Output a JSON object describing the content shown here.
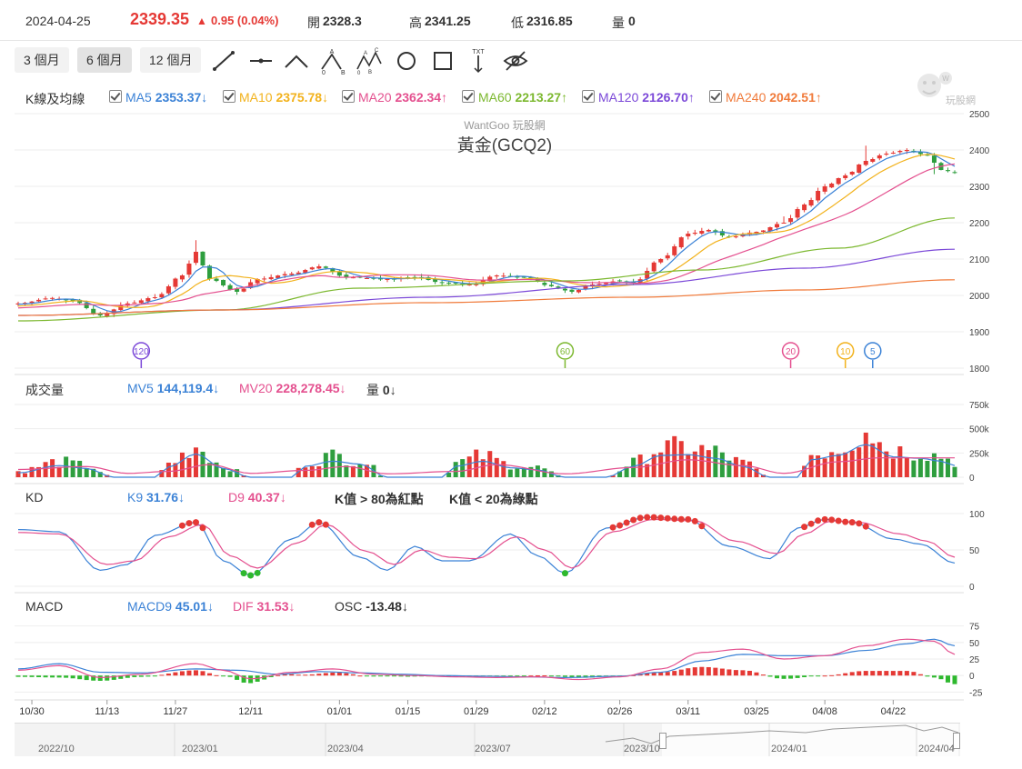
{
  "topbar": {
    "date": "2024-04-25",
    "price": "2339.35",
    "change": "0.95 (0.04%)",
    "open_label": "開",
    "open": "2328.3",
    "high_label": "高",
    "high": "2341.25",
    "low_label": "低",
    "low": "2316.85",
    "vol_label": "量",
    "vol": "0"
  },
  "toolbar": {
    "periods": [
      "3 個月",
      "6 個月",
      "12 個月"
    ],
    "active_period": "6 個月",
    "tools": [
      "line-tool-icon",
      "hline-tool-icon",
      "polyline-tool-icon",
      "abc-pattern-icon",
      "abcd-pattern-icon",
      "circle-tool-icon",
      "rect-tool-icon",
      "text-tool-icon",
      "hide-icon"
    ]
  },
  "price_panel": {
    "header": "K線及均線",
    "legend": [
      {
        "name": "MA5",
        "value": "2353.37",
        "arrow": "↓",
        "color": "#3b82d6"
      },
      {
        "name": "MA10",
        "value": "2375.78",
        "arrow": "↓",
        "color": "#f2b21c"
      },
      {
        "name": "MA20",
        "value": "2362.34",
        "arrow": "↑",
        "color": "#e4508f"
      },
      {
        "name": "MA60",
        "value": "2213.27",
        "arrow": "↑",
        "color": "#7cb82f"
      },
      {
        "name": "MA120",
        "value": "2126.70",
        "arrow": "↑",
        "color": "#7b48d8"
      },
      {
        "name": "MA240",
        "value": "2042.51",
        "arrow": "↑",
        "color": "#f07a3a"
      }
    ],
    "watermark": "WantGoo 玩股網",
    "title": "黃金(GCQ2)",
    "logo_text": "玩股網",
    "markers": [
      {
        "label": "120",
        "color": "#7b48d8",
        "x_index": 18
      },
      {
        "label": "60",
        "color": "#7cb82f",
        "x_index": 80
      },
      {
        "label": "20",
        "color": "#e4508f",
        "x_index": 113
      },
      {
        "label": "10",
        "color": "#f2b21c",
        "x_index": 121
      },
      {
        "label": "5",
        "color": "#3b82d6",
        "x_index": 125
      }
    ]
  },
  "volume_panel": {
    "header": "成交量",
    "legend": [
      {
        "name": "MV5",
        "value": "144,119.4",
        "arrow": "↓",
        "color": "#3b82d6"
      },
      {
        "name": "MV20",
        "value": "228,278.45",
        "arrow": "↓",
        "color": "#e4508f"
      },
      {
        "name": "量",
        "value": "0",
        "arrow": "↓",
        "color": "#333333"
      }
    ]
  },
  "kd_panel": {
    "header": "KD",
    "legend": [
      {
        "name": "K9",
        "value": "31.76",
        "arrow": "↓",
        "color": "#3b82d6"
      },
      {
        "name": "D9",
        "value": "40.37",
        "arrow": "↓",
        "color": "#e4508f"
      }
    ],
    "note_red": "K值 > 80為紅點",
    "note_green": "K值 < 20為綠點"
  },
  "macd_panel": {
    "header": "MACD",
    "legend": [
      {
        "name": "MACD9",
        "value": "45.01",
        "arrow": "↓",
        "color": "#3b82d6"
      },
      {
        "name": "DIF",
        "value": "31.53",
        "arrow": "↓",
        "color": "#e4508f"
      },
      {
        "name": "OSC",
        "value": "-13.48",
        "arrow": "↓",
        "color": "#333333"
      }
    ]
  },
  "navigator": {
    "labels": [
      "2022/10",
      "2023/01",
      "2023/04",
      "2023/07",
      "2023/10",
      "2024/01",
      "2024/04"
    ]
  },
  "chart_data": {
    "type": "candlestick",
    "x_dates": [
      "10/30",
      "11/13",
      "11/27",
      "12/11",
      "01/01",
      "01/15",
      "01/29",
      "02/12",
      "02/26",
      "03/11",
      "03/25",
      "04/08",
      "04/22"
    ],
    "price_axis": {
      "ticks": [
        1800,
        1900,
        2000,
        2100,
        2200,
        2300,
        2400,
        2500
      ],
      "range": [
        1800,
        2500
      ]
    },
    "volume_axis": {
      "ticks": [
        "0",
        "250k",
        "500k",
        "750k"
      ],
      "range": [
        0,
        750000
      ]
    },
    "kd_axis": {
      "ticks": [
        0,
        50,
        100
      ],
      "range": [
        0,
        100
      ]
    },
    "macd_axis": {
      "ticks": [
        -25,
        0,
        25,
        50,
        75
      ],
      "range": [
        -30,
        80
      ]
    },
    "close_anchors": [
      [
        0,
        1978
      ],
      [
        5,
        1993
      ],
      [
        8,
        1985
      ],
      [
        12,
        1945
      ],
      [
        16,
        1978
      ],
      [
        20,
        1995
      ],
      [
        24,
        2055
      ],
      [
        26,
        2120
      ],
      [
        28,
        2045
      ],
      [
        32,
        2010
      ],
      [
        35,
        2045
      ],
      [
        40,
        2060
      ],
      [
        44,
        2080
      ],
      [
        48,
        2050
      ],
      [
        54,
        2045
      ],
      [
        58,
        2050
      ],
      [
        62,
        2035
      ],
      [
        66,
        2030
      ],
      [
        70,
        2055
      ],
      [
        74,
        2050
      ],
      [
        78,
        2025
      ],
      [
        81,
        2010
      ],
      [
        84,
        2030
      ],
      [
        88,
        2040
      ],
      [
        90,
        2035
      ],
      [
        94,
        2100
      ],
      [
        98,
        2170
      ],
      [
        101,
        2180
      ],
      [
        104,
        2160
      ],
      [
        108,
        2175
      ],
      [
        112,
        2200
      ],
      [
        115,
        2250
      ],
      [
        118,
        2300
      ],
      [
        121,
        2330
      ],
      [
        124,
        2370
      ],
      [
        127,
        2390
      ],
      [
        130,
        2400
      ],
      [
        133,
        2385
      ],
      [
        135,
        2345
      ],
      [
        137,
        2339
      ]
    ],
    "kd_k_anchors": [
      [
        0,
        78
      ],
      [
        6,
        75
      ],
      [
        12,
        22
      ],
      [
        16,
        30
      ],
      [
        20,
        70
      ],
      [
        26,
        88
      ],
      [
        30,
        35
      ],
      [
        34,
        15
      ],
      [
        40,
        65
      ],
      [
        44,
        88
      ],
      [
        50,
        40
      ],
      [
        54,
        22
      ],
      [
        58,
        55
      ],
      [
        62,
        35
      ],
      [
        66,
        35
      ],
      [
        72,
        72
      ],
      [
        76,
        42
      ],
      [
        80,
        18
      ],
      [
        86,
        80
      ],
      [
        92,
        95
      ],
      [
        98,
        92
      ],
      [
        104,
        55
      ],
      [
        110,
        38
      ],
      [
        114,
        80
      ],
      [
        118,
        92
      ],
      [
        122,
        88
      ],
      [
        128,
        65
      ],
      [
        132,
        58
      ],
      [
        137,
        32
      ]
    ],
    "kd_d_anchors": [
      [
        0,
        74
      ],
      [
        6,
        72
      ],
      [
        13,
        30
      ],
      [
        17,
        35
      ],
      [
        22,
        68
      ],
      [
        27,
        85
      ],
      [
        31,
        42
      ],
      [
        35,
        25
      ],
      [
        41,
        60
      ],
      [
        45,
        85
      ],
      [
        51,
        48
      ],
      [
        55,
        30
      ],
      [
        59,
        50
      ],
      [
        63,
        40
      ],
      [
        67,
        38
      ],
      [
        73,
        68
      ],
      [
        77,
        50
      ],
      [
        81,
        25
      ],
      [
        87,
        75
      ],
      [
        93,
        92
      ],
      [
        99,
        90
      ],
      [
        105,
        62
      ],
      [
        111,
        45
      ],
      [
        115,
        72
      ],
      [
        119,
        90
      ],
      [
        123,
        88
      ],
      [
        129,
        72
      ],
      [
        133,
        62
      ],
      [
        137,
        40
      ]
    ],
    "macd_dif_anchors": [
      [
        0,
        8
      ],
      [
        6,
        15
      ],
      [
        12,
        -3
      ],
      [
        18,
        2
      ],
      [
        26,
        18
      ],
      [
        30,
        8
      ],
      [
        34,
        -5
      ],
      [
        40,
        5
      ],
      [
        46,
        10
      ],
      [
        52,
        2
      ],
      [
        58,
        0
      ],
      [
        64,
        -2
      ],
      [
        70,
        -3
      ],
      [
        76,
        -2
      ],
      [
        82,
        -6
      ],
      [
        88,
        -2
      ],
      [
        94,
        10
      ],
      [
        100,
        35
      ],
      [
        106,
        40
      ],
      [
        112,
        25
      ],
      [
        118,
        30
      ],
      [
        124,
        45
      ],
      [
        130,
        55
      ],
      [
        134,
        52
      ],
      [
        137,
        32
      ]
    ],
    "macd_macd_anchors": [
      [
        0,
        10
      ],
      [
        6,
        18
      ],
      [
        12,
        5
      ],
      [
        18,
        4
      ],
      [
        26,
        10
      ],
      [
        32,
        8
      ],
      [
        38,
        2
      ],
      [
        44,
        6
      ],
      [
        50,
        4
      ],
      [
        56,
        2
      ],
      [
        62,
        0
      ],
      [
        68,
        -1
      ],
      [
        74,
        -2
      ],
      [
        80,
        -3
      ],
      [
        88,
        -1
      ],
      [
        94,
        5
      ],
      [
        100,
        22
      ],
      [
        106,
        32
      ],
      [
        112,
        30
      ],
      [
        118,
        30
      ],
      [
        124,
        38
      ],
      [
        130,
        48
      ],
      [
        134,
        55
      ],
      [
        137,
        45
      ]
    ],
    "volume_anchors": [
      [
        0,
        60
      ],
      [
        6,
        160
      ],
      [
        10,
        120
      ],
      [
        14,
        0
      ],
      [
        20,
        0
      ],
      [
        22,
        140
      ],
      [
        26,
        320
      ],
      [
        30,
        120
      ],
      [
        34,
        0
      ],
      [
        40,
        0
      ],
      [
        42,
        150
      ],
      [
        46,
        220
      ],
      [
        50,
        180
      ],
      [
        54,
        0
      ],
      [
        62,
        0
      ],
      [
        64,
        150
      ],
      [
        68,
        220
      ],
      [
        72,
        130
      ],
      [
        76,
        100
      ],
      [
        80,
        0
      ],
      [
        86,
        0
      ],
      [
        90,
        150
      ],
      [
        94,
        300
      ],
      [
        98,
        310
      ],
      [
        102,
        260
      ],
      [
        106,
        150
      ],
      [
        110,
        0
      ],
      [
        114,
        0
      ],
      [
        116,
        240
      ],
      [
        120,
        300
      ],
      [
        124,
        450
      ],
      [
        128,
        280
      ],
      [
        132,
        260
      ],
      [
        135,
        220
      ],
      [
        137,
        160
      ]
    ]
  }
}
